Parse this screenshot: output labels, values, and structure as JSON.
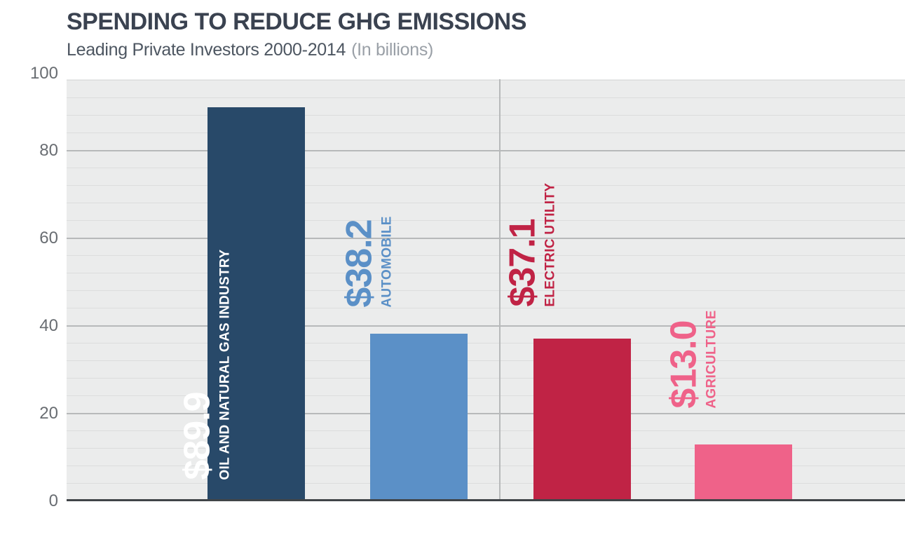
{
  "chart_data": {
    "type": "bar",
    "title": "SPENDING TO REDUCE GHG EMISSIONS",
    "subtitle": "Leading Private Investors 2000-2014",
    "subtitle_note": "(In billions)",
    "xlabel": "",
    "ylabel": "",
    "ylim": [
      0,
      100
    ],
    "y_ticks": [
      "0",
      "20",
      "40",
      "60",
      "80",
      "100"
    ],
    "grid": {
      "show": true,
      "major_interval": 20,
      "minor_interval": 4
    },
    "legend_position": "none",
    "panel_divider": true,
    "categories": [
      "OIL AND NATURAL GAS INDUSTRY",
      "AUTOMOBILE",
      "ELECTRIC UTILITY",
      "AGRICULTURE"
    ],
    "values": [
      89.9,
      38.2,
      37.1,
      13.0
    ],
    "bars": [
      {
        "category": "OIL AND NATURAL GAS INDUSTRY",
        "value": 89.9,
        "value_label": "$89.9",
        "color": "#284969",
        "label_color": "#ffffff",
        "label_placement": "inside"
      },
      {
        "category": "AUTOMOBILE",
        "value": 38.2,
        "value_label": "$38.2",
        "color": "#5b90c7",
        "label_color": "#5b90c7",
        "label_placement": "above"
      },
      {
        "category": "ELECTRIC UTILITY",
        "value": 37.1,
        "value_label": "$37.1",
        "color": "#c02345",
        "label_color": "#c02345",
        "label_placement": "above"
      },
      {
        "category": "AGRICULTURE",
        "value": 13.0,
        "value_label": "$13.0",
        "color": "#ef6289",
        "label_color": "#ef6289",
        "label_placement": "above"
      }
    ]
  },
  "style": {
    "background": "#ffffff",
    "plot_bg": "#ebecec",
    "grid_minor_color": "#dcdddd",
    "grid_major_color": "#b7b9ba",
    "divider_color": "#b7b9ba",
    "baseline_color": "#404448",
    "title_color": "#3a4250",
    "subtitle_color": "#4d5661",
    "subtitle_note_color": "#9aa0a7",
    "tick_label_color": "#696d72"
  }
}
